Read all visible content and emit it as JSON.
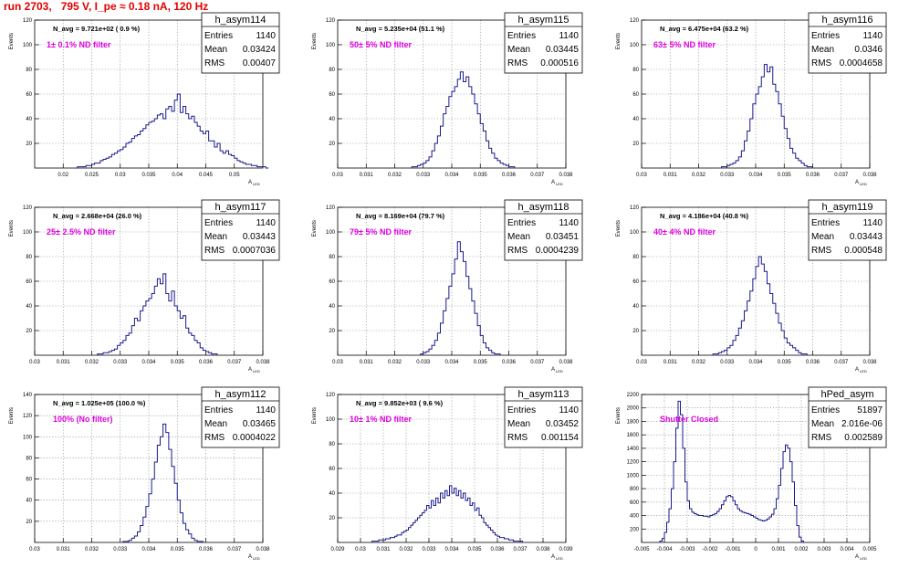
{
  "page_title": "run 2703,   795 V, I_pe ≈ 0.18 nA, 120 Hz",
  "ylabel": "Events",
  "xlabel": "A",
  "xlabel_sub": "LED",
  "stats_labels": {
    "entries": "Entries",
    "mean": "Mean",
    "rms": "RMS"
  },
  "colors": {
    "hist": "#1a1a8c",
    "title": "#e00000",
    "magenta": "#dd00dd",
    "grid": "#808080"
  },
  "chart_data": [
    {
      "type": "bar",
      "name": "h_asym114",
      "title": "N_avg = 9.721e+02 ( 0.9 %)",
      "annotation": "1± 0.1% ND filter",
      "stats": {
        "entries": "1140",
        "mean": "0.03424",
        "rms": "0.00407"
      },
      "xlim": [
        0.015,
        0.055
      ],
      "ylim": [
        0,
        120
      ],
      "xticks": [
        0.02,
        0.025,
        0.03,
        0.035,
        0.04,
        0.045,
        0.05
      ],
      "xtick_labels": [
        "0.02",
        "0.025",
        "0.03",
        "0.035",
        "0.04",
        "0.045",
        "0.05"
      ],
      "yticks": [
        20,
        40,
        60,
        80,
        100,
        120
      ],
      "ytick_labels": [
        "20",
        "40",
        "60",
        "80",
        "100",
        "120"
      ],
      "bin_lo": 0.022,
      "bin_width": 0.0005,
      "values": [
        0,
        1,
        1,
        1,
        2,
        2,
        3,
        4,
        4,
        6,
        7,
        8,
        9,
        11,
        12,
        14,
        15,
        17,
        20,
        21,
        24,
        26,
        27,
        30,
        32,
        35,
        37,
        38,
        40,
        43,
        44,
        40,
        48,
        50,
        46,
        55,
        60,
        45,
        50,
        44,
        40,
        42,
        37,
        34,
        30,
        28,
        30,
        22,
        22,
        17,
        20,
        14,
        12,
        14,
        11,
        10,
        8,
        6,
        5,
        4,
        3,
        3,
        2,
        2,
        1,
        1,
        1,
        0
      ]
    },
    {
      "type": "bar",
      "name": "h_asym115",
      "title": "N_avg = 5.235e+04 (51.1 %)",
      "annotation": "50± 5% ND filter",
      "stats": {
        "entries": "1140",
        "mean": "0.03445",
        "rms": "0.000516"
      },
      "xlim": [
        0.03,
        0.038
      ],
      "ylim": [
        0,
        120
      ],
      "xticks": [
        0.03,
        0.031,
        0.032,
        0.033,
        0.034,
        0.035,
        0.036,
        0.037,
        0.038
      ],
      "xtick_labels": [
        "0.03",
        "0.031",
        "0.032",
        "0.033",
        "0.034",
        "0.035",
        "0.036",
        "0.037",
        "0.038"
      ],
      "yticks": [
        20,
        40,
        60,
        80,
        100,
        120
      ],
      "ytick_labels": [
        "20",
        "40",
        "60",
        "80",
        "100",
        "120"
      ],
      "bin_lo": 0.0326,
      "bin_width": 0.0001,
      "values": [
        1,
        1,
        2,
        3,
        4,
        6,
        9,
        14,
        20,
        26,
        34,
        44,
        50,
        58,
        62,
        66,
        72,
        78,
        70,
        74,
        66,
        60,
        52,
        44,
        36,
        30,
        22,
        16,
        12,
        8,
        6,
        4,
        3,
        2,
        1,
        1
      ]
    },
    {
      "type": "bar",
      "name": "h_asym116",
      "title": "N_avg = 6.475e+04 (63.2 %)",
      "annotation": "63± 5% ND filter",
      "stats": {
        "entries": "1140",
        "mean": "0.0346",
        "rms": "0.0004658"
      },
      "xlim": [
        0.03,
        0.038
      ],
      "ylim": [
        0,
        120
      ],
      "xticks": [
        0.03,
        0.031,
        0.032,
        0.033,
        0.034,
        0.035,
        0.036,
        0.037,
        0.038
      ],
      "xtick_labels": [
        "0.03",
        "0.031",
        "0.032",
        "0.033",
        "0.034",
        "0.035",
        "0.036",
        "0.037",
        "0.038"
      ],
      "yticks": [
        20,
        40,
        60,
        80,
        100,
        120
      ],
      "ytick_labels": [
        "20",
        "40",
        "60",
        "80",
        "100",
        "120"
      ],
      "bin_lo": 0.0328,
      "bin_width": 0.0001,
      "values": [
        1,
        1,
        2,
        3,
        4,
        6,
        9,
        14,
        22,
        30,
        40,
        52,
        60,
        66,
        74,
        84,
        78,
        82,
        68,
        62,
        52,
        42,
        32,
        24,
        16,
        12,
        8,
        6,
        4,
        2,
        1,
        1
      ]
    },
    {
      "type": "bar",
      "name": "h_asym117",
      "title": "N_avg = 2.668e+04 (26.0 %)",
      "annotation": "25± 2.5% ND filter",
      "stats": {
        "entries": "1140",
        "mean": "0.03443",
        "rms": "0.0007036"
      },
      "xlim": [
        0.03,
        0.038
      ],
      "ylim": [
        0,
        120
      ],
      "xticks": [
        0.03,
        0.031,
        0.032,
        0.033,
        0.034,
        0.035,
        0.036,
        0.037,
        0.038
      ],
      "xtick_labels": [
        "0.03",
        "0.031",
        "0.032",
        "0.033",
        "0.034",
        "0.035",
        "0.036",
        "0.037",
        "0.038"
      ],
      "yticks": [
        20,
        40,
        60,
        80,
        100,
        120
      ],
      "ytick_labels": [
        "20",
        "40",
        "60",
        "80",
        "100",
        "120"
      ],
      "bin_lo": 0.0322,
      "bin_width": 0.0001,
      "values": [
        1,
        1,
        2,
        2,
        3,
        4,
        5,
        8,
        10,
        12,
        16,
        18,
        24,
        30,
        28,
        36,
        40,
        44,
        46,
        50,
        56,
        62,
        58,
        66,
        50,
        44,
        52,
        40,
        36,
        30,
        32,
        22,
        18,
        16,
        12,
        10,
        6,
        4,
        3,
        2,
        1,
        1
      ]
    },
    {
      "type": "bar",
      "name": "h_asym118",
      "title": "N_avg = 8.169e+04 (79.7 %)",
      "annotation": "79± 5% ND filter",
      "stats": {
        "entries": "1140",
        "mean": "0.03451",
        "rms": "0.0004239"
      },
      "xlim": [
        0.03,
        0.038
      ],
      "ylim": [
        0,
        120
      ],
      "xticks": [
        0.03,
        0.031,
        0.032,
        0.033,
        0.034,
        0.035,
        0.036,
        0.037,
        0.038
      ],
      "xtick_labels": [
        "0.03",
        "0.031",
        "0.032",
        "0.033",
        "0.034",
        "0.035",
        "0.036",
        "0.037",
        "0.038"
      ],
      "yticks": [
        20,
        40,
        60,
        80,
        100,
        120
      ],
      "ytick_labels": [
        "20",
        "40",
        "60",
        "80",
        "100",
        "120"
      ],
      "bin_lo": 0.0329,
      "bin_width": 0.0001,
      "values": [
        1,
        2,
        3,
        5,
        8,
        12,
        18,
        26,
        36,
        46,
        56,
        66,
        78,
        92,
        84,
        76,
        64,
        54,
        44,
        34,
        24,
        16,
        10,
        6,
        4,
        2,
        1,
        1
      ]
    },
    {
      "type": "bar",
      "name": "h_asym119",
      "title": "N_avg = 4.186e+04 (40.8 %)",
      "annotation": "40± 4% ND filter",
      "stats": {
        "entries": "1140",
        "mean": "0.03443",
        "rms": "0.000548"
      },
      "xlim": [
        0.03,
        0.038
      ],
      "ylim": [
        0,
        120
      ],
      "xticks": [
        0.03,
        0.031,
        0.032,
        0.033,
        0.034,
        0.035,
        0.036,
        0.037,
        0.038
      ],
      "xtick_labels": [
        "0.03",
        "0.031",
        "0.032",
        "0.033",
        "0.034",
        "0.035",
        "0.036",
        "0.037",
        "0.038"
      ],
      "yticks": [
        20,
        40,
        60,
        80,
        100,
        120
      ],
      "ytick_labels": [
        "20",
        "40",
        "60",
        "80",
        "100",
        "120"
      ],
      "bin_lo": 0.0325,
      "bin_width": 0.0001,
      "values": [
        1,
        1,
        2,
        3,
        4,
        6,
        8,
        12,
        16,
        22,
        28,
        36,
        44,
        52,
        62,
        72,
        80,
        74,
        68,
        58,
        50,
        42,
        34,
        26,
        20,
        14,
        10,
        8,
        6,
        4,
        2,
        1,
        1
      ]
    },
    {
      "type": "bar",
      "name": "h_asym112",
      "title": "N_avg = 1.025e+05 (100.0 %)",
      "annotation": "100% (No filter)",
      "stats": {
        "entries": "1140",
        "mean": "0.03465",
        "rms": "0.0004022"
      },
      "xlim": [
        0.03,
        0.038
      ],
      "ylim": [
        0,
        140
      ],
      "xticks": [
        0.03,
        0.031,
        0.032,
        0.033,
        0.034,
        0.035,
        0.036,
        0.037,
        0.038
      ],
      "xtick_labels": [
        "0.03",
        "0.031",
        "0.032",
        "0.033",
        "0.034",
        "0.035",
        "0.036",
        "0.037",
        "0.038"
      ],
      "yticks": [
        20,
        40,
        60,
        80,
        100,
        120,
        140
      ],
      "ytick_labels": [
        "20",
        "40",
        "60",
        "80",
        "100",
        "120",
        "140"
      ],
      "bin_lo": 0.0331,
      "bin_width": 0.0001,
      "values": [
        1,
        1,
        2,
        4,
        6,
        10,
        16,
        24,
        34,
        46,
        60,
        76,
        92,
        100,
        112,
        104,
        88,
        72,
        56,
        40,
        28,
        18,
        12,
        8,
        4,
        2,
        1,
        1
      ]
    },
    {
      "type": "bar",
      "name": "h_asym113",
      "title": "N_avg = 9.852e+03 ( 9.6 %)",
      "annotation": "10± 1% ND filter",
      "stats": {
        "entries": "1140",
        "mean": "0.03452",
        "rms": "0.001154"
      },
      "xlim": [
        0.029,
        0.039
      ],
      "ylim": [
        0,
        120
      ],
      "xticks": [
        0.029,
        0.03,
        0.031,
        0.032,
        0.033,
        0.034,
        0.035,
        0.036,
        0.037,
        0.038,
        0.039
      ],
      "xtick_labels": [
        "0.029",
        "0.03",
        "0.031",
        "0.032",
        "0.033",
        "0.034",
        "0.035",
        "0.036",
        "0.037",
        "0.038",
        "0.039"
      ],
      "yticks": [
        20,
        40,
        60,
        80,
        100,
        120
      ],
      "ytick_labels": [
        "20",
        "40",
        "60",
        "80",
        "100",
        "120"
      ],
      "bin_lo": 0.0305,
      "bin_width": 0.0001,
      "values": [
        1,
        1,
        1,
        2,
        2,
        2,
        3,
        3,
        4,
        4,
        5,
        6,
        6,
        8,
        9,
        10,
        12,
        14,
        16,
        18,
        20,
        22,
        24,
        26,
        30,
        28,
        34,
        30,
        36,
        32,
        40,
        36,
        42,
        38,
        46,
        40,
        44,
        38,
        42,
        36,
        40,
        34,
        36,
        30,
        32,
        26,
        28,
        22,
        20,
        16,
        14,
        12,
        10,
        8,
        6,
        5,
        4,
        4,
        3,
        3,
        2,
        2,
        1,
        1,
        1,
        1
      ]
    },
    {
      "type": "bar",
      "name": "hPed_asym",
      "title": "",
      "annotation": "Shutter Closed",
      "stats": {
        "entries": "51897",
        "mean": "2.016e-06",
        "rms": "0.002589"
      },
      "xlim": [
        -0.005,
        0.005
      ],
      "ylim": [
        0,
        2200
      ],
      "xticks": [
        -0.005,
        -0.004,
        -0.003,
        -0.002,
        -0.001,
        0,
        0.001,
        0.002,
        0.003,
        0.004,
        0.005
      ],
      "xtick_labels": [
        "-0.005",
        "-0.004",
        "-0.003",
        "-0.002",
        "-0.001",
        "0",
        "0.001",
        "0.002",
        "0.003",
        "0.004",
        "0.005"
      ],
      "yticks": [
        200,
        400,
        600,
        800,
        1000,
        1200,
        1400,
        1600,
        1800,
        2000,
        2200
      ],
      "ytick_labels": [
        "200",
        "400",
        "600",
        "800",
        "1000",
        "1200",
        "1400",
        "1600",
        "1800",
        "2000",
        "2200"
      ],
      "bin_lo": -0.0042,
      "bin_width": 0.0001,
      "values": [
        20,
        60,
        150,
        300,
        500,
        800,
        1200,
        1700,
        2100,
        1900,
        1400,
        900,
        620,
        500,
        450,
        430,
        410,
        400,
        400,
        390,
        390,
        380,
        400,
        410,
        430,
        460,
        500,
        560,
        620,
        680,
        700,
        680,
        620,
        560,
        500,
        470,
        450,
        440,
        430,
        420,
        400,
        380,
        360,
        340,
        330,
        320,
        330,
        350,
        380,
        420,
        500,
        650,
        850,
        1100,
        1350,
        1450,
        1400,
        1200,
        900,
        550,
        250,
        80,
        20
      ]
    }
  ]
}
